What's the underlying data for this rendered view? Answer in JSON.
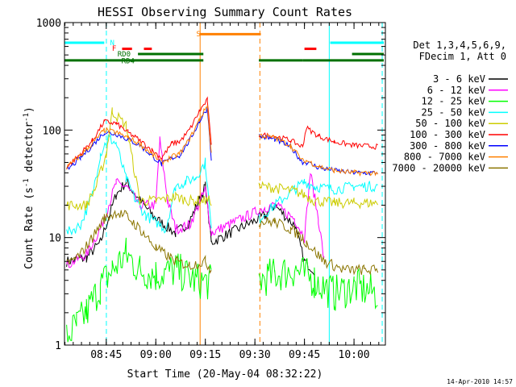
{
  "chart_data": {
    "type": "line",
    "title": "HESSI Observing Summary Count Rates",
    "xlabel": "Start Time (20-May-04 08:32:22)",
    "ylabel_main": "Count Rate (s",
    "ylabel_sup1": "-1",
    "ylabel_mid": " detector",
    "ylabel_sup2": "-1",
    "ylabel_end": ")",
    "footer": "14-Apr-2010 14:57",
    "yscale": "log",
    "ylim": [
      1,
      1000
    ],
    "xlim": [
      8.5394,
      10.1583
    ],
    "x_ticks": [
      {
        "v": 8.75,
        "label": "08:45"
      },
      {
        "v": 9.0,
        "label": "09:00"
      },
      {
        "v": 9.25,
        "label": "09:15"
      },
      {
        "v": 9.5,
        "label": "09:30"
      },
      {
        "v": 9.75,
        "label": "09:45"
      },
      {
        "v": 10.0,
        "label": "10:00"
      }
    ],
    "y_ticks": [
      {
        "v": 1,
        "label": "1"
      },
      {
        "v": 10,
        "label": "10"
      },
      {
        "v": 100,
        "label": "100"
      },
      {
        "v": 1000,
        "label": "1000"
      }
    ],
    "legend_header": [
      "Det 1,3,4,5,6,9,",
      "FDecim 1, Att 0"
    ],
    "legend_position": "right",
    "series": [
      {
        "name": "3 - 6 keV",
        "color": "#000000",
        "x": [
          8.55,
          8.65,
          8.72,
          8.8,
          8.85,
          8.92,
          9.0,
          9.1,
          9.17,
          9.25,
          9.28,
          9.55,
          9.6,
          9.7,
          9.75,
          9.8
        ],
        "y": [
          6,
          6.5,
          9,
          25,
          33,
          22,
          15,
          11,
          14,
          30,
          9,
          16,
          20,
          13,
          6,
          5
        ]
      },
      {
        "name": "6 - 12 keV",
        "color": "#ff00ff",
        "x": [
          8.55,
          8.65,
          8.72,
          8.8,
          8.85,
          8.92,
          9.0,
          9.02,
          9.06,
          9.1,
          9.17,
          9.25,
          9.28,
          9.55,
          9.6,
          9.7,
          9.75,
          9.78,
          9.82,
          9.85
        ],
        "y": [
          5.5,
          7,
          12,
          32,
          30,
          20,
          20,
          80,
          22,
          12,
          13,
          28,
          11,
          19,
          20,
          15,
          10,
          40,
          15,
          6
        ]
      },
      {
        "name": "12 - 25 keV",
        "color": "#00ff00",
        "x": [
          8.55,
          8.6,
          8.65,
          8.72,
          8.78,
          8.85,
          8.92,
          9.0,
          9.1,
          9.2,
          9.28,
          9.52,
          9.6,
          9.7,
          9.8,
          9.9,
          10.0,
          10.12
        ],
        "y": [
          1.2,
          1.5,
          2,
          3.5,
          5,
          7,
          5,
          4.5,
          5,
          4,
          3.8,
          4,
          4.5,
          5,
          4,
          3,
          3.5,
          3
        ]
      },
      {
        "name": "25 - 50 keV",
        "color": "#00ffff",
        "x": [
          8.55,
          8.62,
          8.68,
          8.72,
          8.76,
          8.8,
          8.85,
          8.9,
          8.95,
          9.0,
          9.05,
          9.1,
          9.15,
          9.2,
          9.25,
          9.28,
          9.52,
          9.6,
          9.7,
          9.75,
          9.8,
          9.9,
          10.0,
          10.12
        ],
        "y": [
          11,
          13,
          25,
          60,
          85,
          75,
          35,
          22,
          16,
          14,
          12,
          30,
          33,
          36,
          50,
          12,
          15,
          20,
          28,
          33,
          30,
          28,
          30,
          30
        ]
      },
      {
        "name": "50 - 100 keV",
        "color": "#cccc00",
        "x": [
          8.55,
          8.65,
          8.7,
          8.75,
          8.78,
          8.85,
          8.92,
          9.0,
          9.1,
          9.17,
          9.25,
          9.28,
          9.52,
          9.6,
          9.7,
          9.75,
          9.8,
          9.9,
          10.0,
          10.12
        ],
        "y": [
          20,
          20,
          30,
          60,
          150,
          110,
          22,
          22,
          24,
          22,
          22,
          22,
          30,
          29,
          27,
          25,
          22,
          21,
          21,
          21
        ]
      },
      {
        "name": "100 - 300 keV",
        "color": "#ff0000",
        "x": [
          8.55,
          8.62,
          8.68,
          8.74,
          8.8,
          8.86,
          8.92,
          8.98,
          9.03,
          9.08,
          9.12,
          9.17,
          9.22,
          9.26,
          9.28,
          9.52,
          9.6,
          9.68,
          9.74,
          9.76,
          9.82,
          9.9,
          10.0,
          10.12
        ],
        "y": [
          45,
          60,
          80,
          120,
          115,
          95,
          80,
          65,
          55,
          75,
          78,
          100,
          150,
          190,
          70,
          90,
          88,
          80,
          70,
          105,
          88,
          78,
          72,
          70
        ]
      },
      {
        "name": "300 - 800 keV",
        "color": "#0000ff",
        "x": [
          8.55,
          8.62,
          8.68,
          8.74,
          8.8,
          8.86,
          8.92,
          8.98,
          9.03,
          9.08,
          9.12,
          9.17,
          9.22,
          9.26,
          9.28,
          9.52,
          9.6,
          9.68,
          9.74,
          9.76,
          9.82,
          9.9,
          10.0,
          10.12
        ],
        "y": [
          42,
          55,
          72,
          95,
          92,
          82,
          72,
          58,
          48,
          55,
          58,
          80,
          120,
          160,
          55,
          88,
          82,
          70,
          50,
          50,
          45,
          42,
          40,
          40
        ]
      },
      {
        "name": "800 - 7000 keV",
        "color": "#ff8000",
        "x": [
          8.55,
          8.62,
          8.68,
          8.74,
          8.8,
          8.86,
          8.92,
          8.98,
          9.03,
          9.08,
          9.12,
          9.17,
          9.22,
          9.26,
          9.28,
          9.52,
          9.6,
          9.68,
          9.74,
          9.76,
          9.82,
          9.9,
          10.0,
          10.12
        ],
        "y": [
          45,
          58,
          75,
          100,
          95,
          85,
          74,
          60,
          50,
          56,
          60,
          82,
          125,
          170,
          60,
          90,
          85,
          72,
          52,
          52,
          46,
          42,
          40,
          40
        ]
      },
      {
        "name": "7000 - 20000 keV",
        "color": "#8b7500",
        "x": [
          8.55,
          8.62,
          8.68,
          8.74,
          8.8,
          8.85,
          8.92,
          9.0,
          9.1,
          9.17,
          9.25,
          9.28,
          9.52,
          9.6,
          9.68,
          9.74,
          9.76,
          9.85,
          9.95,
          10.05,
          10.12
        ],
        "y": [
          5.5,
          7,
          10,
          15,
          17,
          16,
          12,
          8,
          6,
          5.5,
          6,
          5,
          14,
          14,
          12,
          10,
          9,
          6,
          5,
          5,
          5
        ]
      }
    ],
    "state_bars": [
      {
        "label": "N",
        "color": "#00ffff",
        "level": 650,
        "segments": [
          [
            8.54,
            8.74
          ],
          [
            9.88,
            10.15
          ]
        ]
      },
      {
        "label": "F",
        "color": "#ff0000",
        "level": 570,
        "segments": [
          [
            8.83,
            8.88
          ],
          [
            8.94,
            8.98
          ],
          [
            9.75,
            9.81
          ]
        ]
      },
      {
        "label": "S",
        "color": "#ff8000",
        "level": 780,
        "segments": [
          [
            9.22,
            9.53
          ]
        ]
      },
      {
        "label": "RD0",
        "color": "#007000",
        "level": 510,
        "segments": [
          [
            8.91,
            9.24
          ],
          [
            9.99,
            10.15
          ]
        ]
      },
      {
        "label": "RD4",
        "color": "#007000",
        "level": 445,
        "segments": [
          [
            8.54,
            9.24
          ],
          [
            9.52,
            9.74
          ],
          [
            9.74,
            10.15
          ]
        ]
      }
    ],
    "vertical_markers": [
      {
        "x": 8.7506,
        "color": "#00ffff",
        "style": "dashed"
      },
      {
        "x": 9.2236,
        "color": "#ff8000",
        "style": "solid"
      },
      {
        "x": 9.5251,
        "color": "#ff8000",
        "style": "dashed"
      },
      {
        "x": 9.8751,
        "color": "#00ffff",
        "style": "solid"
      },
      {
        "x": 10.1422,
        "color": "#00ffff",
        "style": "dashed"
      }
    ]
  }
}
